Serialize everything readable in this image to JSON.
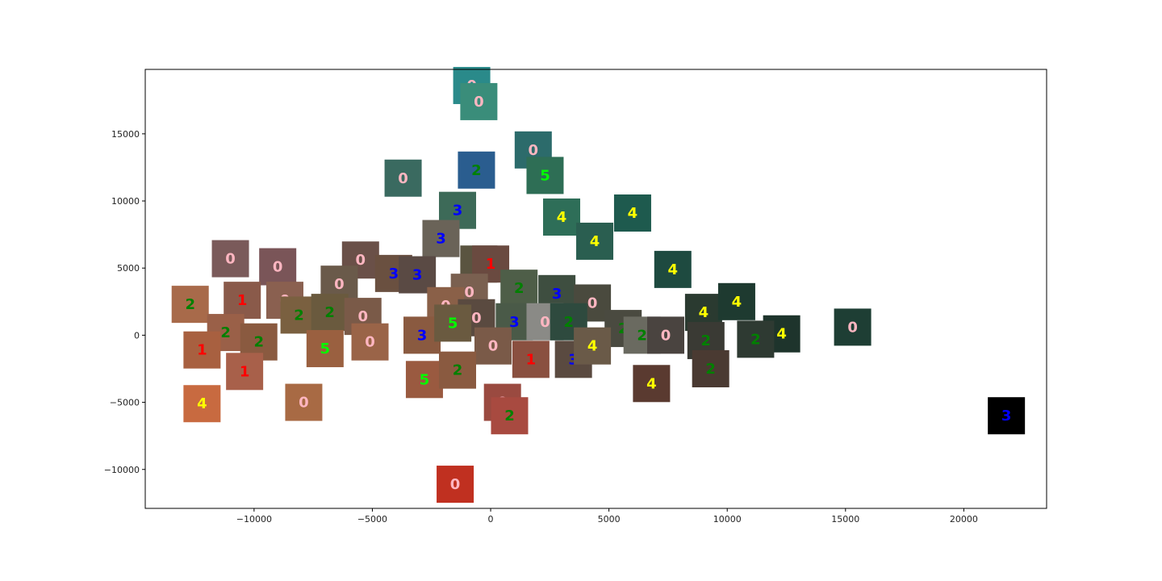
{
  "chart_data": {
    "type": "scatter",
    "title": "",
    "xlabel": "",
    "ylabel": "",
    "xlim": [
      -14600,
      23500
    ],
    "ylim": [
      -12900,
      19800
    ],
    "xticks": [
      -10000,
      -5000,
      0,
      5000,
      10000,
      15000,
      20000
    ],
    "xtick_labels": [
      "−10000",
      "−5000",
      "0",
      "5000",
      "10000",
      "15000",
      "20000"
    ],
    "yticks": [
      -10000,
      -5000,
      0,
      5000,
      10000,
      15000
    ],
    "ytick_labels": [
      "−10000",
      "−5000",
      "0",
      "5000",
      "10000",
      "15000"
    ],
    "grid": false,
    "label_colors": {
      "0": "#ffb6c1",
      "1": "#ff0000",
      "2": "#008000",
      "3": "#0000ff",
      "4": "#ffff00",
      "5": "#00ff00"
    },
    "points": [
      {
        "x": -800,
        "y": 18600,
        "label": "0",
        "color": "#2a8a8a"
      },
      {
        "x": -500,
        "y": 17400,
        "label": "0",
        "color": "#3a8d7a"
      },
      {
        "x": 1800,
        "y": 13800,
        "label": "0",
        "color": "#2c6b6b"
      },
      {
        "x": -3700,
        "y": 11700,
        "label": "0",
        "color": "#3a6a60"
      },
      {
        "x": -600,
        "y": 12300,
        "label": "2",
        "color": "#2a5d8f"
      },
      {
        "x": 2300,
        "y": 11900,
        "label": "5",
        "color": "#2e6e55"
      },
      {
        "x": -1400,
        "y": 9300,
        "label": "3",
        "color": "#3d6a58"
      },
      {
        "x": 3000,
        "y": 8800,
        "label": "4",
        "color": "#2e6e58"
      },
      {
        "x": 6000,
        "y": 9100,
        "label": "4",
        "color": "#1e5a4e"
      },
      {
        "x": -2100,
        "y": 7200,
        "label": "3",
        "color": "#6a6358"
      },
      {
        "x": 4400,
        "y": 7000,
        "label": "4",
        "color": "#2a5e50"
      },
      {
        "x": 7700,
        "y": 4900,
        "label": "4",
        "color": "#1e4a40"
      },
      {
        "x": -11000,
        "y": 5700,
        "label": "0",
        "color": "#7a5a5a"
      },
      {
        "x": -9000,
        "y": 5100,
        "label": "0",
        "color": "#7a5558"
      },
      {
        "x": -5500,
        "y": 5600,
        "label": "0",
        "color": "#6a5048"
      },
      {
        "x": -4100,
        "y": 4600,
        "label": "3",
        "color": "#6a5040"
      },
      {
        "x": -3100,
        "y": 4500,
        "label": "3",
        "color": "#5a4a44"
      },
      {
        "x": -500,
        "y": 5300,
        "label": "2",
        "color": "#5a5440"
      },
      {
        "x": 0,
        "y": 5300,
        "label": "1",
        "color": "#6a4a40"
      },
      {
        "x": -6400,
        "y": 3800,
        "label": "0",
        "color": "#6a5a4a"
      },
      {
        "x": -900,
        "y": 3200,
        "label": "0",
        "color": "#7a6050"
      },
      {
        "x": 1200,
        "y": 3500,
        "label": "2",
        "color": "#4e5e48"
      },
      {
        "x": 2800,
        "y": 3100,
        "label": "3",
        "color": "#3e4e40"
      },
      {
        "x": 4300,
        "y": 2400,
        "label": "0",
        "color": "#4a4a3e"
      },
      {
        "x": -12700,
        "y": 2300,
        "label": "2",
        "color": "#a86a4a"
      },
      {
        "x": -10500,
        "y": 2600,
        "label": "1",
        "color": "#8a5a4a"
      },
      {
        "x": -8700,
        "y": 2600,
        "label": "0",
        "color": "#8a6050"
      },
      {
        "x": -8100,
        "y": 1500,
        "label": "2",
        "color": "#7a6040"
      },
      {
        "x": -6800,
        "y": 1700,
        "label": "2",
        "color": "#6a5a3e"
      },
      {
        "x": -5400,
        "y": 1400,
        "label": "0",
        "color": "#7a5a48"
      },
      {
        "x": -1900,
        "y": 2200,
        "label": "0",
        "color": "#8a6048"
      },
      {
        "x": -600,
        "y": 1300,
        "label": "0",
        "color": "#5a4a40"
      },
      {
        "x": 1000,
        "y": 1000,
        "label": "3",
        "color": "#4a5a48"
      },
      {
        "x": 2300,
        "y": 1000,
        "label": "0",
        "color": "#8a8a86"
      },
      {
        "x": 3300,
        "y": 1000,
        "label": "2",
        "color": "#2e4a3e"
      },
      {
        "x": 5600,
        "y": 500,
        "label": "2",
        "color": "#4a4a40"
      },
      {
        "x": 6400,
        "y": 0,
        "label": "2",
        "color": "#6a6a60"
      },
      {
        "x": 9000,
        "y": 1700,
        "label": "4",
        "color": "#2a3a30"
      },
      {
        "x": 10400,
        "y": 2500,
        "label": "4",
        "color": "#1e3a30"
      },
      {
        "x": 12300,
        "y": 100,
        "label": "4",
        "color": "#1e342c"
      },
      {
        "x": 15300,
        "y": 600,
        "label": "0",
        "color": "#1e3e34"
      },
      {
        "x": -11200,
        "y": 200,
        "label": "2",
        "color": "#9a6048"
      },
      {
        "x": -9800,
        "y": -500,
        "label": "2",
        "color": "#8a5a40"
      },
      {
        "x": -12200,
        "y": -1100,
        "label": "1",
        "color": "#a86040"
      },
      {
        "x": -7000,
        "y": -1000,
        "label": "5",
        "color": "#9a6040"
      },
      {
        "x": -5100,
        "y": -500,
        "label": "0",
        "color": "#9a6448"
      },
      {
        "x": -2900,
        "y": 0,
        "label": "3",
        "color": "#8a5a40"
      },
      {
        "x": -1600,
        "y": 900,
        "label": "5",
        "color": "#6a5a40"
      },
      {
        "x": 100,
        "y": -800,
        "label": "0",
        "color": "#7a5a48"
      },
      {
        "x": 1700,
        "y": -1800,
        "label": "1",
        "color": "#8a5040"
      },
      {
        "x": 3500,
        "y": -1800,
        "label": "3",
        "color": "#5a4a40"
      },
      {
        "x": 4300,
        "y": -800,
        "label": "4",
        "color": "#6a5a48"
      },
      {
        "x": 7400,
        "y": 0,
        "label": "0",
        "color": "#4a4440"
      },
      {
        "x": 9100,
        "y": -400,
        "label": "2",
        "color": "#3a3a34"
      },
      {
        "x": 11200,
        "y": -300,
        "label": "2",
        "color": "#2e3a32"
      },
      {
        "x": -10400,
        "y": -2700,
        "label": "1",
        "color": "#a8604a"
      },
      {
        "x": -2800,
        "y": -3300,
        "label": "5",
        "color": "#9a5a40"
      },
      {
        "x": -1400,
        "y": -2600,
        "label": "2",
        "color": "#8a5a40"
      },
      {
        "x": 6800,
        "y": -3600,
        "label": "4",
        "color": "#5a3a30"
      },
      {
        "x": 9300,
        "y": -2500,
        "label": "2",
        "color": "#4a3a32"
      },
      {
        "x": -12200,
        "y": -5100,
        "label": "4",
        "color": "#c86a40"
      },
      {
        "x": -7900,
        "y": -5000,
        "label": "0",
        "color": "#a86a44"
      },
      {
        "x": 500,
        "y": -5000,
        "label": "0",
        "color": "#9a4a40"
      },
      {
        "x": 800,
        "y": -6000,
        "label": "2",
        "color": "#a84a40"
      },
      {
        "x": 21800,
        "y": -6000,
        "label": "3",
        "color": "#000000"
      },
      {
        "x": -1500,
        "y": -11100,
        "label": "0",
        "color": "#c03020"
      }
    ]
  }
}
